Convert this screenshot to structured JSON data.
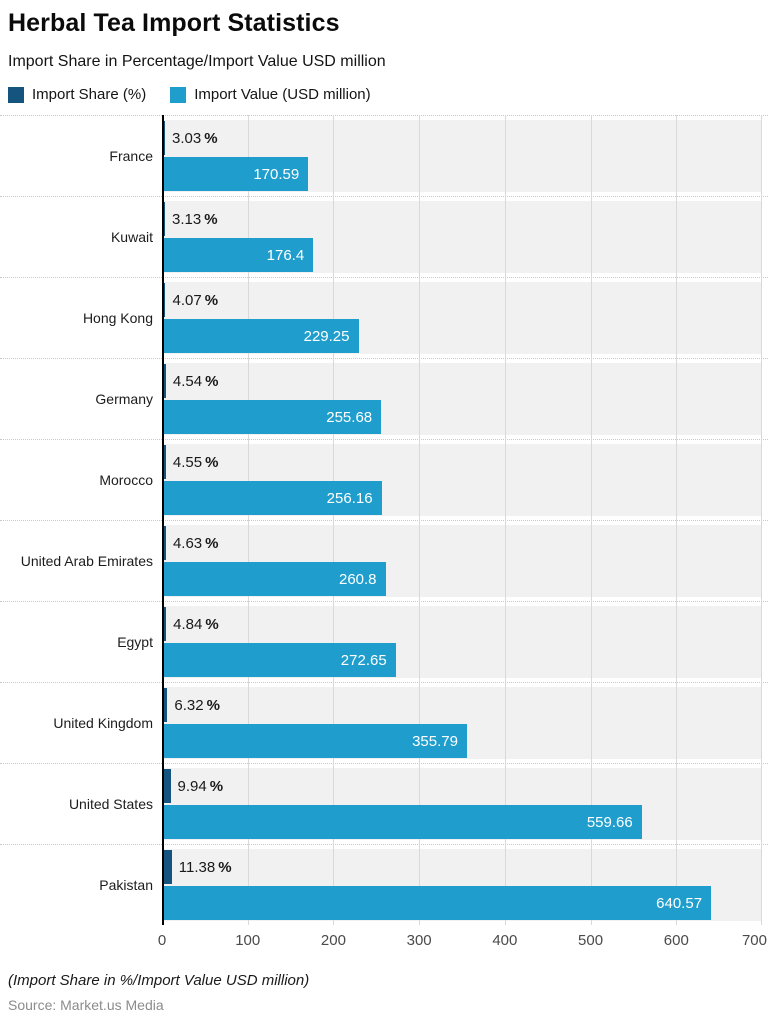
{
  "header": {
    "title": "Herbal Tea Import Statistics",
    "subtitle": "Import Share in Percentage/Import Value USD million"
  },
  "legend": [
    {
      "label": "Import Share (%)",
      "color": "#15547e"
    },
    {
      "label": "Import Value (USD million)",
      "color": "#1f9ecd"
    }
  ],
  "colors": {
    "share": "#15547e",
    "value": "#1f9ecd",
    "band": "#f1f1f1",
    "gridline": "#d9d9d9",
    "axis": "#000000"
  },
  "chart_data": {
    "type": "bar",
    "orientation": "horizontal",
    "title": "Herbal Tea Import Statistics",
    "subtitle": "Import Share in Percentage/Import Value USD million",
    "xlim": [
      0,
      700
    ],
    "xticks": [
      "0",
      "100",
      "200",
      "300",
      "400",
      "500",
      "600",
      "700"
    ],
    "grid": "vertical",
    "legend_position": "top-left",
    "share_suffix": "%",
    "categories": [
      "France",
      "Kuwait",
      "Hong Kong",
      "Germany",
      "Morocco",
      "United Arab Emirates",
      "Egypt",
      "United Kingdom",
      "United States",
      "Pakistan"
    ],
    "series": [
      {
        "name": "Import Share (%)",
        "values": [
          3.03,
          3.13,
          4.07,
          4.54,
          4.55,
          4.63,
          4.84,
          6.32,
          9.94,
          11.38
        ]
      },
      {
        "name": "Import Value (USD million)",
        "values": [
          170.59,
          176.4,
          229.25,
          255.68,
          256.16,
          260.8,
          272.65,
          355.79,
          559.66,
          640.57
        ]
      }
    ],
    "rows": [
      {
        "country": "France",
        "share": "3.03",
        "value": "170.59"
      },
      {
        "country": "Kuwait",
        "share": "3.13",
        "value": "176.4"
      },
      {
        "country": "Hong Kong",
        "share": "4.07",
        "value": "229.25"
      },
      {
        "country": "Germany",
        "share": "4.54",
        "value": "255.68"
      },
      {
        "country": "Morocco",
        "share": "4.55",
        "value": "256.16"
      },
      {
        "country": "United Arab Emirates",
        "share": "4.63",
        "value": "260.8"
      },
      {
        "country": "Egypt",
        "share": "4.84",
        "value": "272.65"
      },
      {
        "country": "United Kingdom",
        "share": "6.32",
        "value": "355.79"
      },
      {
        "country": "United States",
        "share": "9.94",
        "value": "559.66"
      },
      {
        "country": "Pakistan",
        "share": "11.38",
        "value": "640.57"
      }
    ]
  },
  "footer": {
    "note": "(Import Share in %/Import Value USD million)",
    "source": "Source: Market.us Media"
  }
}
